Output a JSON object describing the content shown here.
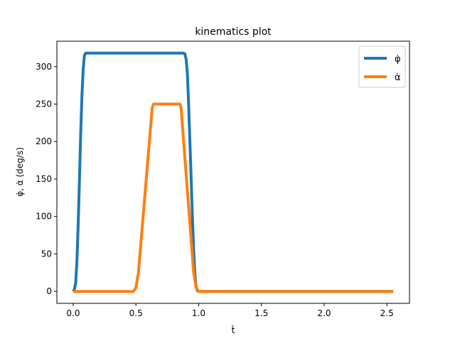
{
  "chart_data": {
    "type": "line",
    "title": "kinematics plot",
    "xlabel": "t̂",
    "ylabel": "φ̇, α̇ (deg/s)",
    "xlim": [
      -0.13,
      2.68
    ],
    "ylim": [
      -15.9,
      333.9
    ],
    "xticks": [
      0.0,
      0.5,
      1.0,
      1.5,
      2.0,
      2.5
    ],
    "xtick_labels": [
      "0.0",
      "0.5",
      "1.0",
      "1.5",
      "2.0",
      "2.5"
    ],
    "yticks": [
      0,
      50,
      100,
      150,
      200,
      250,
      300
    ],
    "ytick_labels": [
      "0",
      "50",
      "100",
      "150",
      "200",
      "250",
      "300"
    ],
    "grid": false,
    "legend_position": "upper right",
    "series": [
      {
        "name": "φ̇",
        "color": "#1f77b4",
        "x": [
          0.0,
          0.01,
          0.02,
          0.03,
          0.04,
          0.05,
          0.06,
          0.07,
          0.08,
          0.09,
          0.1,
          0.88,
          0.89,
          0.9,
          0.91,
          0.92,
          0.93,
          0.94,
          0.95,
          0.96,
          0.97,
          0.98,
          0.99,
          1.0,
          2.55
        ],
        "y": [
          0,
          3,
          12,
          40,
          90,
          150,
          210,
          262,
          298,
          315,
          318,
          318,
          317,
          310,
          290,
          250,
          200,
          150,
          100,
          55,
          22,
          6,
          1,
          0,
          0
        ]
      },
      {
        "name": "α̇",
        "color": "#ff7f0e",
        "x": [
          0.0,
          0.48,
          0.5,
          0.52,
          0.63,
          0.64,
          0.85,
          0.86,
          0.96,
          0.98,
          1.0,
          2.55
        ],
        "y": [
          0,
          0,
          5,
          25,
          245,
          250,
          250,
          245,
          25,
          5,
          0,
          0
        ]
      }
    ]
  }
}
